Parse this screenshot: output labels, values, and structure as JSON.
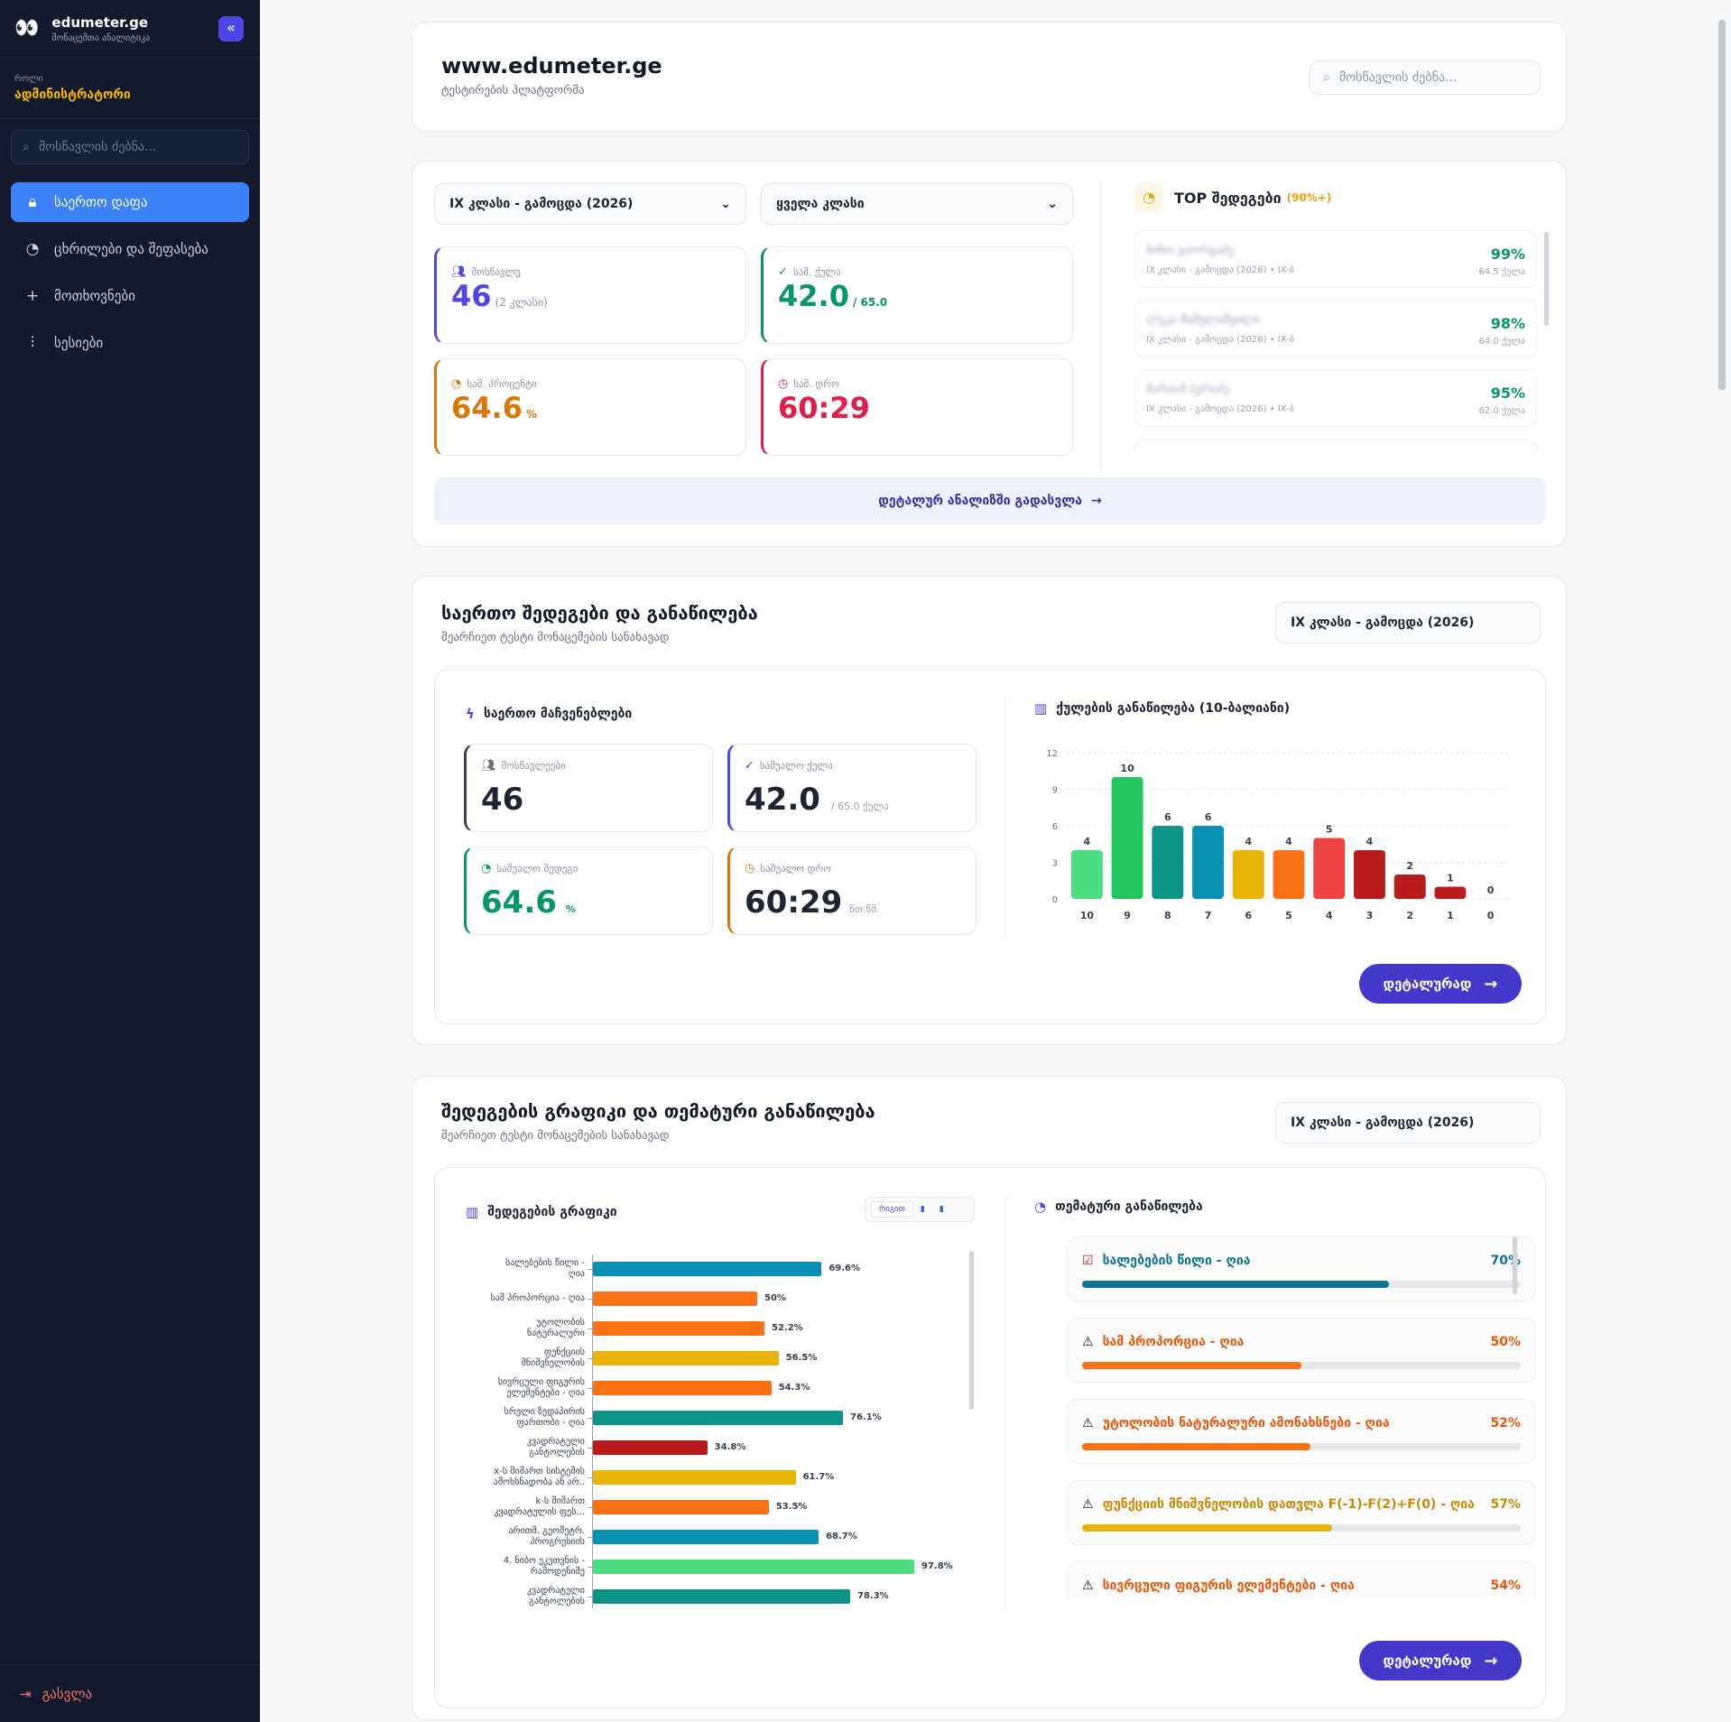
{
  "sidebar": {
    "brand_title": "edumeter.ge",
    "brand_subtitle": "მონაცემთა ანალიტიკა",
    "role_label": "როლი",
    "role_value": "ადმინისტრატორი",
    "search_placeholder": "მოსწავლის ძებნა...",
    "items": [
      {
        "label": "საერთო დაფა",
        "icon": "lock-icon",
        "active": true
      },
      {
        "label": "ცხრილები და შეფასება",
        "icon": "pie-icon",
        "active": false
      },
      {
        "label": "მოთხოვნები",
        "icon": "plus-icon",
        "active": false
      },
      {
        "label": "სესიები",
        "icon": "sliders-icon",
        "active": false
      }
    ],
    "logout_label": "გასვლა"
  },
  "header": {
    "title": "www.edumeter.ge",
    "subtitle": "ტესტირების პლატფორმა",
    "search_placeholder": "მოსწავლის ძებნა..."
  },
  "overview": {
    "exam_select": "IX კლასი - გამოცდა (2026)",
    "class_select": "ყველა კლასი",
    "stats": [
      {
        "label": "მოსწავლე",
        "value": "46",
        "unit": "(2 კლასი)",
        "color": "#4f46e5"
      },
      {
        "label": "საშ. ქულა",
        "value": "42.0",
        "unit": "/ 65.0",
        "color": "#059669"
      },
      {
        "label": "საშ. პროცენტი",
        "value": "64.6",
        "unit": "%",
        "color": "#d97706"
      },
      {
        "label": "საშ. დრო",
        "value": "60:29",
        "unit": "",
        "color": "#e11d48"
      }
    ],
    "top_title": "TOP შედეგები",
    "top_suffix": "(90%+)",
    "top_results": [
      {
        "name": "ნინო გიორგაძე",
        "meta": "IX კლასი - გამოცდა (2026) • IX-ბ",
        "percent": "99%",
        "points": "64.5 ქულა"
      },
      {
        "name": "ლუკა მამულაშვილი",
        "meta": "IX კლასი - გამოცდა (2026) • IX-ბ",
        "percent": "98%",
        "points": "64.0 ქულა"
      },
      {
        "name": "მარიამ ბერიძე",
        "meta": "IX კლასი - გამოცდა (2026) • IX-ბ",
        "percent": "95%",
        "points": "62.0 ქულა"
      }
    ],
    "detail_link": "დეტალურ ანალიზში გადასვლა"
  },
  "section1": {
    "title": "საერთო შედეგები და განაწილება",
    "subtitle": "შეარჩიეთ ტესტი მონაცემების სანახავად",
    "select": "IX კლასი - გამოცდა (2026)",
    "metrics_title": "საერთო მაჩვენებლები",
    "metrics": [
      {
        "label": "მოსწავლეები",
        "value": "46",
        "unit": "",
        "color": "#374151"
      },
      {
        "label": "საშუალო ქულა",
        "value": "42.0",
        "unit": "/ 65.0 ქულა",
        "color": "#4f46e5"
      },
      {
        "label": "საშუალო შედეგი",
        "value": "64.6",
        "unit": "%",
        "color": "#059669"
      },
      {
        "label": "საშუალო დრო",
        "value": "60:29",
        "unit": "წთ:წმ",
        "color": "#d97706"
      }
    ],
    "dist_title": "ქულების განაწილება (10-ბალიანი)",
    "button": "დეტალურად"
  },
  "section2": {
    "title": "შედეგების გრაფიკი და თემატური განაწილება",
    "subtitle": "შეარჩიეთ ტესტი მონაცემების სანახავად",
    "select": "IX კლასი - გამოცდა (2026)",
    "chart_title": "შედეგების გრაფიკი",
    "toggle_label": "რიგით",
    "themes_title": "თემატური განაწილება",
    "themes": [
      {
        "label": "სალებების წილი - ღია",
        "percent": "70%",
        "value": 70,
        "color": "#0e7490",
        "fill": "#0e7490",
        "icon": "check-icon"
      },
      {
        "label": "სამ პროპორცია - ღია",
        "percent": "50%",
        "value": 50,
        "color": "#ea580c",
        "fill": "#f97316",
        "icon": "warning-icon"
      },
      {
        "label": "უტოლობის ნატურალური ამონახსნები - ღია",
        "percent": "52%",
        "value": 52,
        "color": "#ea580c",
        "fill": "#f97316",
        "icon": "warning-icon"
      },
      {
        "label": "ფუნქციის მნიშვნელობის დათვლა F(-1)-F(2)+F(0) - ღია",
        "percent": "57%",
        "value": 57,
        "color": "#ca8a04",
        "fill": "#eab308",
        "icon": "warning-icon"
      },
      {
        "label": "სივრცული ფიგურის ელემენტები - ღია",
        "percent": "54%",
        "value": 54,
        "color": "#ea580c",
        "fill": "#f97316",
        "icon": "warning-icon"
      }
    ],
    "button": "დეტალურად"
  },
  "chart_data": [
    {
      "type": "bar",
      "title": "ქულების განაწილება (10-ბალიანი)",
      "categories": [
        "10",
        "9",
        "8",
        "7",
        "6",
        "5",
        "4",
        "3",
        "2",
        "1",
        "0"
      ],
      "values": [
        4,
        10,
        6,
        6,
        4,
        4,
        5,
        4,
        2,
        1,
        0
      ],
      "colors": [
        "#4ade80",
        "#22c55e",
        "#0d9488",
        "#0891b2",
        "#eab308",
        "#f97316",
        "#ef4444",
        "#b91c1c",
        "#b91c1c",
        "#b91c1c",
        "#b91c1c"
      ],
      "y_ticks": [
        "0",
        "3",
        "6",
        "9",
        "12"
      ],
      "ylim": [
        0,
        12
      ],
      "grid": true
    },
    {
      "type": "bar",
      "orientation": "horizontal",
      "title": "შედეგების გრაფიკი",
      "categories": [
        [
          "სალებების წილი -",
          "ღია"
        ],
        [
          "სამ პროპორცია - ღია"
        ],
        [
          "უტოლობის",
          "ნატურალური"
        ],
        [
          "ფუნქციის",
          "მნიშვნელობის"
        ],
        [
          "სივრცული ფიგურის",
          "ელემენტები - ღია"
        ],
        [
          "სრული ზედაპირის",
          "ფართობი - ღია"
        ],
        [
          "კვადრატული",
          "განტოლების"
        ],
        [
          "x-ს მიმართ სისტემის",
          "ამოხსნადობა ან არ.."
        ],
        [
          "k-ს მიმართ",
          "კვადრატულის ფეს..."
        ],
        [
          "არითმ. გეომეტრ.",
          "პროგრესიის"
        ],
        [
          "4. ნიბო ეკუთვნის -",
          "რამოდენიმე"
        ],
        [
          "კვადრატული",
          "განტოლების"
        ]
      ],
      "values": [
        69.6,
        50,
        52.2,
        56.5,
        54.3,
        76.1,
        34.8,
        61.7,
        53.5,
        68.7,
        97.8,
        78.3
      ],
      "labels": [
        "69.6%",
        "50%",
        "52.2%",
        "56.5%",
        "54.3%",
        "76.1%",
        "34.8%",
        "61.7%",
        "53.5%",
        "68.7%",
        "97.8%",
        "78.3%"
      ],
      "colors": [
        "#0891b2",
        "#f97316",
        "#f97316",
        "#eab308",
        "#f97316",
        "#0d9488",
        "#b91c1c",
        "#eab308",
        "#f97316",
        "#0891b2",
        "#4ade80",
        "#0d9488"
      ],
      "xlim": [
        0,
        100
      ]
    }
  ]
}
